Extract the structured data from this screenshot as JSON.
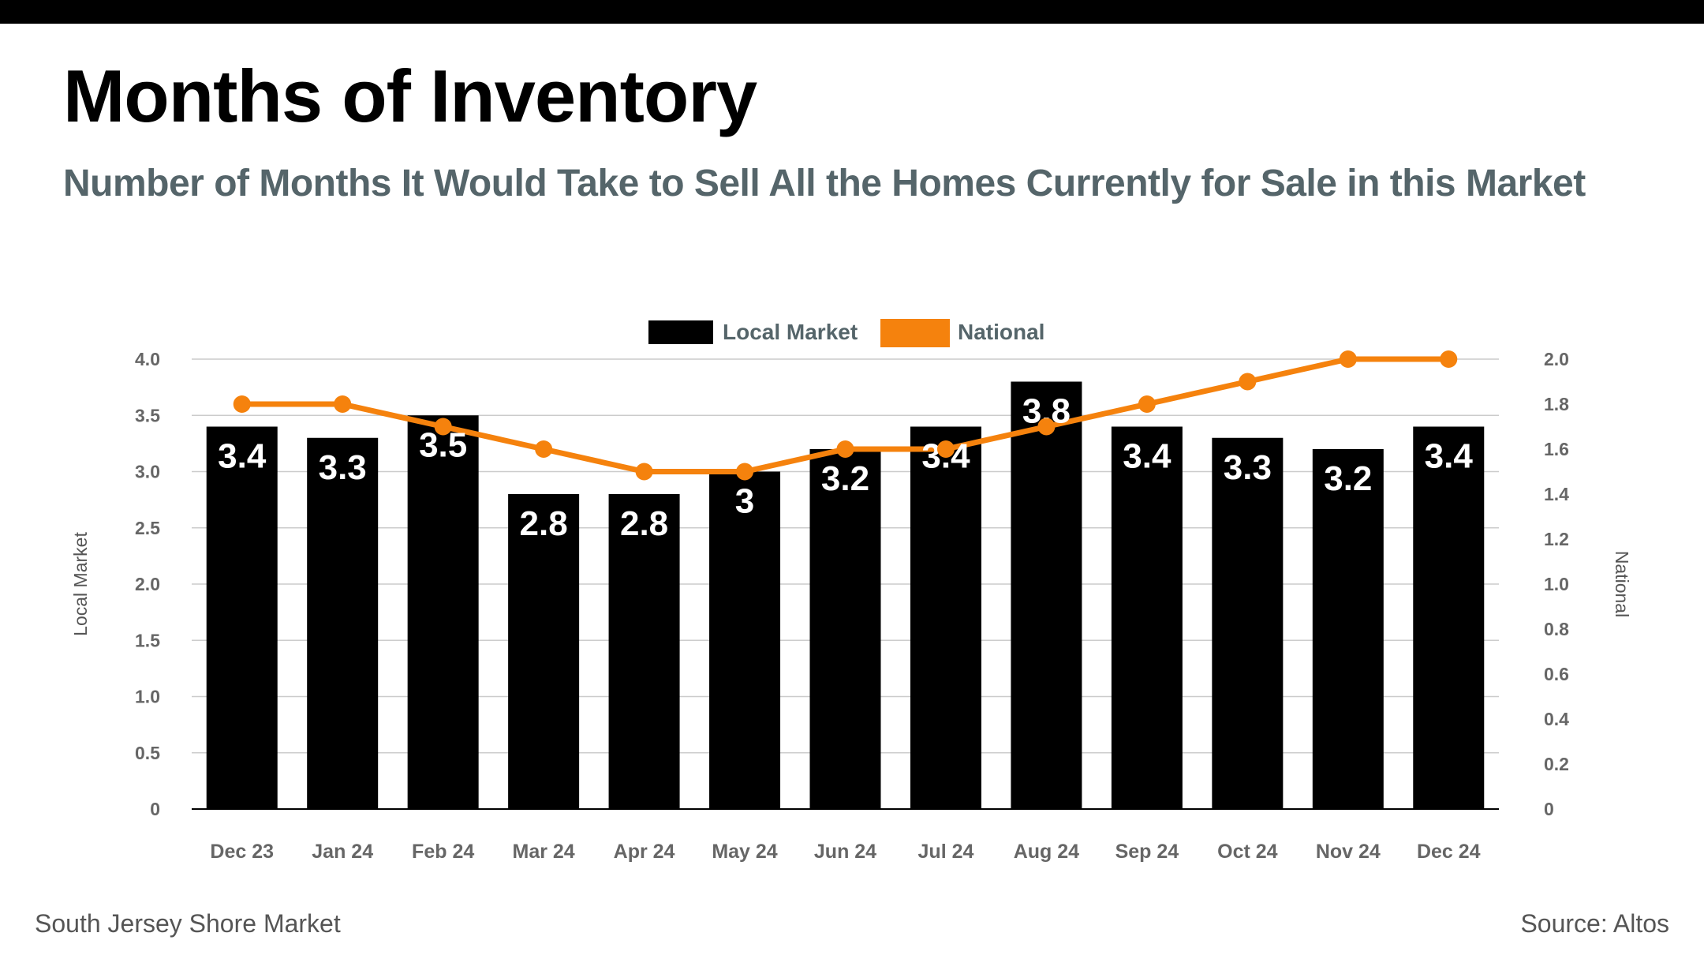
{
  "header": {
    "title": "Months of Inventory",
    "subtitle": "Number of Months It Would Take to Sell All the Homes Currently for Sale in this Market"
  },
  "footer": {
    "market": "South Jersey Shore Market",
    "source": "Source: Altos"
  },
  "colors": {
    "bar": "#000000",
    "line": "#f5820d",
    "grid": "#cccccc",
    "title": "#000000",
    "subtitle": "#55656a"
  },
  "chart_data": {
    "type": "bar",
    "categories": [
      "Dec 23",
      "Jan 24",
      "Feb 24",
      "Mar 24",
      "Apr 24",
      "May 24",
      "Jun 24",
      "Jul 24",
      "Aug 24",
      "Sep 24",
      "Oct 24",
      "Nov 24",
      "Dec 24"
    ],
    "series": [
      {
        "name": "Local Market",
        "type": "bar",
        "axis": "left",
        "values": [
          3.4,
          3.3,
          3.5,
          2.8,
          2.8,
          3,
          3.2,
          3.4,
          3.8,
          3.4,
          3.3,
          3.2,
          3.4
        ],
        "labels": [
          "3.4",
          "3.3",
          "3.5",
          "2.8",
          "2.8",
          "3",
          "3.2",
          "3.4",
          "3.8",
          "3.4",
          "3.3",
          "3.2",
          "3.4"
        ]
      },
      {
        "name": "National",
        "type": "line",
        "axis": "right",
        "values": [
          1.8,
          1.8,
          1.7,
          1.6,
          1.5,
          1.5,
          1.6,
          1.6,
          1.7,
          1.8,
          1.9,
          2.0,
          2.0
        ]
      }
    ],
    "y_left": {
      "label": "Local Market",
      "range": [
        0,
        4
      ],
      "ticks": [
        0,
        0.5,
        1,
        1.5,
        2,
        2.5,
        3,
        3.5,
        4
      ],
      "tick_labels": [
        "0",
        "0.5",
        "1.0",
        "1.5",
        "2.0",
        "2.5",
        "3.0",
        "3.5",
        "4.0"
      ]
    },
    "y_right": {
      "label": "National",
      "range": [
        0,
        2
      ],
      "ticks": [
        0,
        0.2,
        0.4,
        0.6,
        0.8,
        1,
        1.2,
        1.4,
        1.6,
        1.8,
        2
      ],
      "tick_labels": [
        "0",
        "0.2",
        "0.4",
        "0.6",
        "0.8",
        "1.0",
        "1.2",
        "1.4",
        "1.6",
        "1.8",
        "2.0"
      ]
    },
    "legend": [
      "Local Market",
      "National"
    ],
    "legend_position": "top-center",
    "grid": true
  }
}
